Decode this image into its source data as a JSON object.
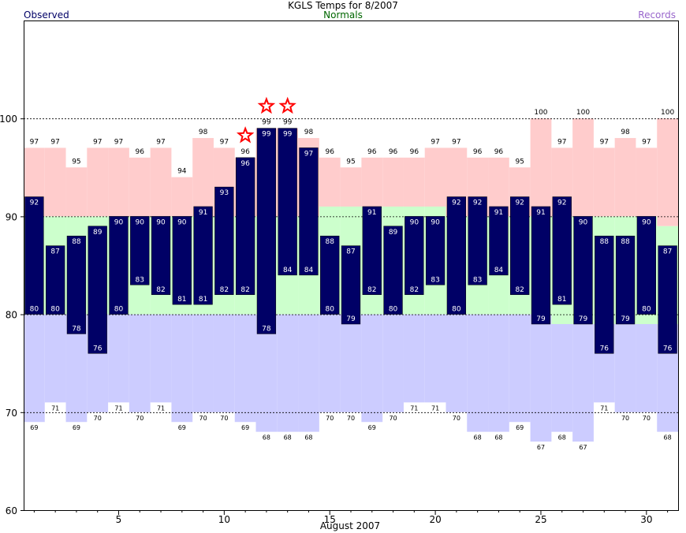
{
  "chart_data": {
    "type": "bar",
    "title": "KGLS Temps for 8/2007",
    "xlabel": "August 2007",
    "ylabel": "",
    "legend": {
      "observed": "Observed",
      "normals": "Normals",
      "records": "Records"
    },
    "colors": {
      "observed": "#000066",
      "normals": "#ccffcc",
      "records_high": "#ffcccc",
      "records_low": "#ccccff",
      "observed_label": "#000066",
      "normals_label": "#006600",
      "records_label": "#9966cc",
      "record_star": "#ff0000"
    },
    "ylim": [
      60,
      110
    ],
    "yticks": [
      60,
      70,
      80,
      90,
      100
    ],
    "xlim": [
      0.5,
      31.5
    ],
    "xticks": [
      5,
      10,
      15,
      20,
      25,
      30
    ],
    "gridlines_y": [
      70,
      80,
      90,
      100
    ],
    "days": [
      1,
      2,
      3,
      4,
      5,
      6,
      7,
      8,
      9,
      10,
      11,
      12,
      13,
      14,
      15,
      16,
      17,
      18,
      19,
      20,
      21,
      22,
      23,
      24,
      25,
      26,
      27,
      28,
      29,
      30,
      31
    ],
    "series": [
      {
        "name": "Observed High",
        "values": [
          92,
          87,
          88,
          89,
          90,
          90,
          90,
          90,
          91,
          93,
          96,
          99,
          99,
          97,
          88,
          87,
          91,
          89,
          90,
          90,
          92,
          92,
          91,
          92,
          91,
          92,
          90,
          88,
          88,
          90,
          87
        ]
      },
      {
        "name": "Observed Low",
        "values": [
          80,
          80,
          78,
          76,
          80,
          83,
          82,
          81,
          81,
          82,
          82,
          78,
          84,
          84,
          80,
          79,
          82,
          80,
          82,
          83,
          80,
          83,
          84,
          82,
          79,
          81,
          79,
          76,
          79,
          80,
          76
        ]
      },
      {
        "name": "Normal High",
        "values": [
          90,
          90,
          90,
          90,
          90,
          90,
          90,
          90,
          90,
          90,
          90,
          90,
          90,
          90,
          91,
          91,
          91,
          91,
          91,
          91,
          90,
          90,
          90,
          90,
          90,
          90,
          90,
          90,
          90,
          90,
          89
        ]
      },
      {
        "name": "Normal Low",
        "values": [
          80,
          80,
          80,
          80,
          80,
          80,
          80,
          80,
          80,
          80,
          80,
          80,
          80,
          80,
          80,
          80,
          80,
          80,
          80,
          80,
          80,
          80,
          80,
          80,
          80,
          79,
          79,
          79,
          79,
          79,
          79
        ]
      },
      {
        "name": "Record High",
        "values": [
          97,
          97,
          95,
          97,
          97,
          96,
          97,
          94,
          98,
          97,
          96,
          99,
          99,
          98,
          96,
          95,
          96,
          96,
          96,
          97,
          97,
          96,
          96,
          95,
          100,
          97,
          100,
          97,
          98,
          97,
          100
        ]
      },
      {
        "name": "Record Low",
        "values": [
          69,
          71,
          69,
          70,
          71,
          70,
          71,
          69,
          70,
          70,
          69,
          68,
          68,
          68,
          70,
          70,
          69,
          70,
          71,
          71,
          70,
          68,
          68,
          69,
          67,
          68,
          67,
          71,
          70,
          70,
          68
        ]
      }
    ],
    "new_records": [
      11,
      12,
      13
    ]
  }
}
